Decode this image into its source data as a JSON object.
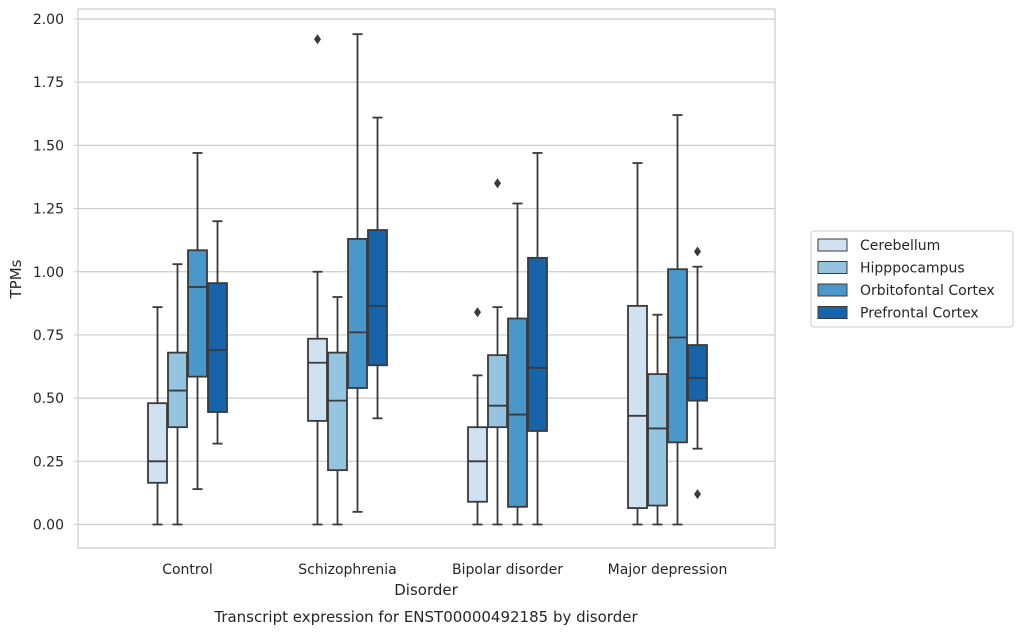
{
  "chart_data": {
    "type": "box",
    "title": "Transcript expression for ENST00000492185 by disorder",
    "xlabel": "Disorder",
    "ylabel": "TPMs",
    "ylim": [
      -0.1,
      2.03
    ],
    "yticks": [
      "0.00",
      "0.25",
      "0.50",
      "0.75",
      "1.00",
      "1.25",
      "1.50",
      "1.75",
      "2.00"
    ],
    "grid": true,
    "legend_position": "right",
    "categories": [
      "Control",
      "Schizophrenia",
      "Bipolar disorder",
      "Major depression"
    ],
    "series": [
      {
        "name": "Cerebellum",
        "color": "#d0e1f2",
        "boxes": [
          {
            "whislo": 0.0,
            "q1": 0.165,
            "med": 0.25,
            "q3": 0.48,
            "whishi": 0.86,
            "fliers": []
          },
          {
            "whislo": 0.0,
            "q1": 0.41,
            "med": 0.64,
            "q3": 0.735,
            "whishi": 1.0,
            "fliers": [
              1.92
            ]
          },
          {
            "whislo": 0.0,
            "q1": 0.09,
            "med": 0.25,
            "q3": 0.385,
            "whishi": 0.59,
            "fliers": [
              0.84
            ]
          },
          {
            "whislo": 0.0,
            "q1": 0.065,
            "med": 0.43,
            "q3": 0.865,
            "whishi": 1.43,
            "fliers": []
          }
        ]
      },
      {
        "name": "Hipppocampus",
        "color": "#94c4df",
        "boxes": [
          {
            "whislo": 0.0,
            "q1": 0.385,
            "med": 0.53,
            "q3": 0.68,
            "whishi": 1.03,
            "fliers": []
          },
          {
            "whislo": 0.0,
            "q1": 0.215,
            "med": 0.49,
            "q3": 0.68,
            "whishi": 0.9,
            "fliers": []
          },
          {
            "whislo": 0.0,
            "q1": 0.385,
            "med": 0.47,
            "q3": 0.67,
            "whishi": 0.86,
            "fliers": [
              1.35
            ]
          },
          {
            "whislo": 0.0,
            "q1": 0.075,
            "med": 0.38,
            "q3": 0.595,
            "whishi": 0.83,
            "fliers": []
          }
        ]
      },
      {
        "name": "Orbitofontal Cortex",
        "color": "#4a98c9",
        "boxes": [
          {
            "whislo": 0.14,
            "q1": 0.585,
            "med": 0.94,
            "q3": 1.085,
            "whishi": 1.47,
            "fliers": []
          },
          {
            "whislo": 0.05,
            "q1": 0.54,
            "med": 0.76,
            "q3": 1.13,
            "whishi": 1.94,
            "fliers": []
          },
          {
            "whislo": 0.0,
            "q1": 0.07,
            "med": 0.435,
            "q3": 0.815,
            "whishi": 1.27,
            "fliers": []
          },
          {
            "whislo": 0.0,
            "q1": 0.325,
            "med": 0.74,
            "q3": 1.01,
            "whishi": 1.62,
            "fliers": []
          }
        ]
      },
      {
        "name": "Prefrontal Cortex",
        "color": "#1764ab",
        "boxes": [
          {
            "whislo": 0.32,
            "q1": 0.445,
            "med": 0.69,
            "q3": 0.955,
            "whishi": 1.2,
            "fliers": []
          },
          {
            "whislo": 0.42,
            "q1": 0.63,
            "med": 0.865,
            "q3": 1.165,
            "whishi": 1.61,
            "fliers": []
          },
          {
            "whislo": 0.0,
            "q1": 0.37,
            "med": 0.62,
            "q3": 1.055,
            "whishi": 1.47,
            "fliers": []
          },
          {
            "whislo": 0.3,
            "q1": 0.49,
            "med": 0.58,
            "q3": 0.71,
            "whishi": 1.02,
            "fliers": [
              1.08,
              0.12
            ]
          }
        ]
      }
    ]
  }
}
